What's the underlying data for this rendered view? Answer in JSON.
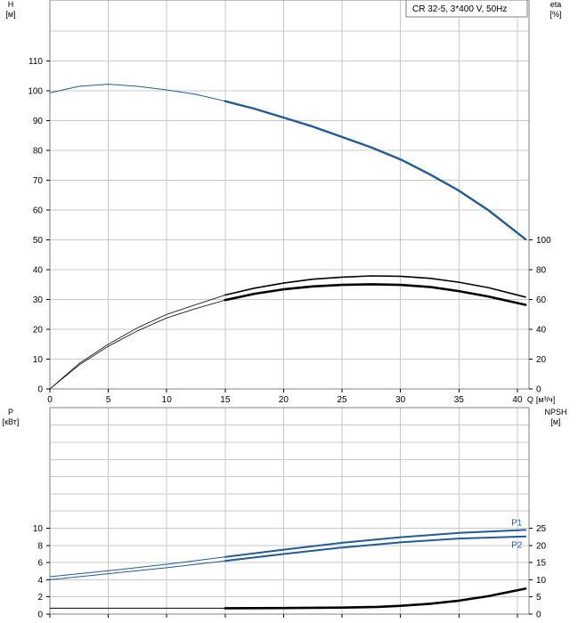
{
  "legend": {
    "text": "CR 32-5, 3*400 V, 50Hz"
  },
  "chart_data": [
    {
      "type": "line",
      "x": {
        "label": "Q",
        "unit": "[м³/ч]",
        "lim": [
          0,
          41
        ],
        "ticks": [
          0,
          5,
          10,
          15,
          20,
          25,
          30,
          35,
          40
        ]
      },
      "y_left": {
        "label": "H",
        "unit": "[м]",
        "lim": [
          0,
          120
        ],
        "ticks": [
          0,
          10,
          20,
          30,
          40,
          50,
          60,
          70,
          80,
          90,
          100,
          110
        ]
      },
      "y_right": {
        "label": "eta",
        "unit": "[%]",
        "lim": [
          0,
          100
        ],
        "ticks": [
          0,
          20,
          40,
          60,
          80,
          100
        ]
      },
      "grid": true,
      "legend_position": "top-right",
      "series": [
        {
          "axis": "left",
          "color": "#1f5c99",
          "x": [
            0,
            2.5,
            5,
            7.5,
            10,
            12.5,
            15,
            17.5,
            20,
            22.5,
            25,
            27.5,
            30,
            32.5,
            35,
            37.5,
            40.7
          ],
          "values": [
            99.3,
            101.5,
            102.2,
            101.5,
            100.3,
            98.8,
            96.5,
            94,
            91,
            88,
            84.5,
            81,
            77,
            72,
            66.5,
            60,
            50.2
          ]
        },
        {
          "axis": "left",
          "color": "#000000",
          "x": [
            0,
            2.5,
            5,
            7.5,
            10,
            12.5,
            15,
            17.5,
            20,
            22.5,
            25,
            27.5,
            30,
            32.5,
            35,
            37.5,
            40.7
          ],
          "values": [
            0,
            8.5,
            15,
            20.5,
            25,
            28.3,
            31.5,
            33.8,
            35.5,
            36.8,
            37.5,
            37.9,
            37.8,
            37.1,
            35.8,
            34,
            30.8
          ]
        },
        {
          "axis": "left",
          "color": "#000000",
          "x": [
            0,
            2.5,
            5,
            7.5,
            10,
            12.5,
            15,
            17.5,
            20,
            22.5,
            25,
            27.5,
            30,
            32.5,
            35,
            37.5,
            40.7
          ],
          "values": [
            0,
            8,
            14.3,
            19.5,
            23.8,
            27,
            29.8,
            31.9,
            33.4,
            34.4,
            34.9,
            35.1,
            34.9,
            34.2,
            32.8,
            31,
            28.2
          ]
        }
      ]
    },
    {
      "type": "line",
      "x": {
        "lim": [
          0,
          41
        ],
        "ticks": [
          0,
          5,
          10,
          15,
          20,
          25,
          30,
          35,
          40
        ]
      },
      "y_left": {
        "label": "P",
        "unit": "[кВт]",
        "lim": [
          0,
          12
        ],
        "ticks": [
          0,
          2,
          4,
          6,
          8,
          10
        ]
      },
      "y_right": {
        "label": "NPSH",
        "unit": "[м]",
        "lim": [
          0,
          30
        ],
        "ticks": [
          0,
          5,
          10,
          15,
          20,
          25
        ]
      },
      "grid": true,
      "series": [
        {
          "name": "P1",
          "axis": "left",
          "color": "#1f5c99",
          "x": [
            0,
            5,
            10,
            15,
            20,
            25,
            30,
            35,
            40.7
          ],
          "values": [
            4.35,
            5.05,
            5.8,
            6.65,
            7.5,
            8.3,
            8.95,
            9.45,
            9.8
          ]
        },
        {
          "name": "P2",
          "axis": "left",
          "color": "#1f5c99",
          "x": [
            0,
            5,
            10,
            15,
            20,
            25,
            30,
            35,
            40.7
          ],
          "values": [
            4.0,
            4.7,
            5.4,
            6.2,
            7.0,
            7.75,
            8.35,
            8.8,
            9.05
          ]
        },
        {
          "axis": "right",
          "color": "#000000",
          "x": [
            0,
            15,
            20,
            25,
            28,
            30,
            32.5,
            35,
            37.5,
            40.7
          ],
          "values": [
            1.7,
            1.7,
            1.75,
            1.9,
            2.1,
            2.4,
            3.0,
            3.9,
            5.2,
            7.4
          ]
        }
      ]
    }
  ]
}
